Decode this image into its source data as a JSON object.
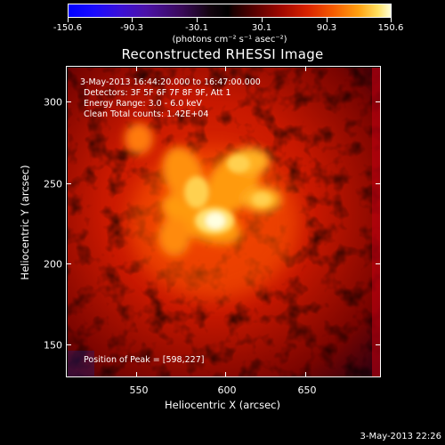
{
  "colorbar": {
    "ticks": [
      "-150.6",
      "-90.3",
      "-30.1",
      "30.1",
      "90.3",
      "150.6"
    ],
    "units": "(photons cm⁻² s⁻¹ asec⁻²)"
  },
  "title": "Reconstructed RHESSI Image",
  "info": {
    "time_range": "3-May-2013 16:44:20.000 to 16:47:00.000",
    "detectors": "Detectors: 3F 5F 6F 7F 8F 9F, Att 1",
    "energy": "Energy Range: 3.0 - 6.0 keV",
    "clean": "Clean    Total counts: 1.42E+04",
    "peak": "Position of Peak = [598,227]"
  },
  "x_axis": {
    "title": "Heliocentric X (arcsec)",
    "ticks": [
      "550",
      "600",
      "650"
    ],
    "range": [
      505,
      695
    ]
  },
  "y_axis": {
    "title": "Heliocentric Y (arcsec)",
    "ticks": [
      "150",
      "200",
      "250",
      "300"
    ],
    "range": [
      128,
      322
    ]
  },
  "timestamp": "3-May-2013 22:26",
  "colors": {
    "background": "#000000",
    "flare_core": "#ffffe0",
    "flare_bright": "#ffc020",
    "map_mid": "#e02000",
    "map_low": "#600000"
  }
}
